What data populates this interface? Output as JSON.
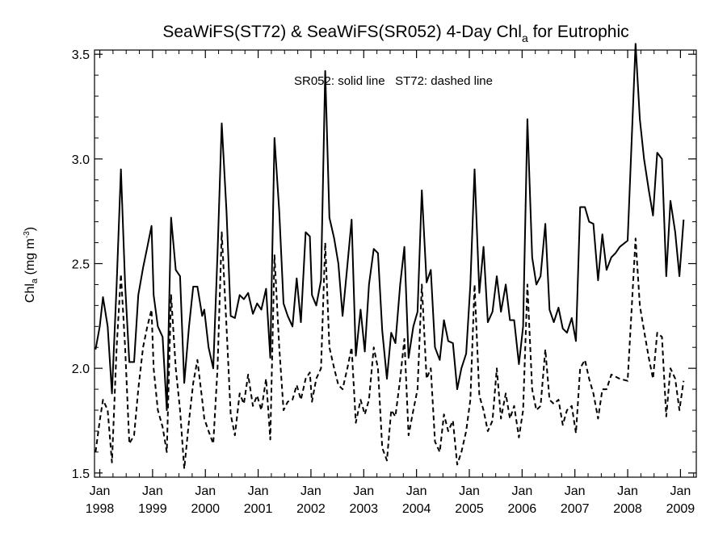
{
  "chart_data": {
    "type": "line",
    "title": {
      "part1": "SeaWiFS(ST72) & SeaWiFS(SR052) 4-Day Chl",
      "sub": "a",
      "part2": " for Eutrophic"
    },
    "ylabel": {
      "main": "Chl",
      "sub": "a",
      "unit_pre": " (mg m",
      "sup": "-3",
      "unit_post": ")"
    },
    "annotation": "SR052: solid line   ST72: dashed line",
    "xlim": [
      1997.9,
      2009.3
    ],
    "ylim": [
      1.48,
      3.52
    ],
    "yticks": [
      1.5,
      2.0,
      2.5,
      3.0,
      3.5
    ],
    "ytick_labels": [
      "1.5",
      "2.0",
      "2.5",
      "3.0",
      "3.5"
    ],
    "xticks": [
      {
        "value": 1998,
        "month": "Jan",
        "year": "1998"
      },
      {
        "value": 1999,
        "month": "Jan",
        "year": "1999"
      },
      {
        "value": 2000,
        "month": "Jan",
        "year": "2000"
      },
      {
        "value": 2001,
        "month": "Jan",
        "year": "2001"
      },
      {
        "value": 2002,
        "month": "Jan",
        "year": "2002"
      },
      {
        "value": 2003,
        "month": "Jan",
        "year": "2003"
      },
      {
        "value": 2004,
        "month": "Jan",
        "year": "2004"
      },
      {
        "value": 2005,
        "month": "Jan",
        "year": "2005"
      },
      {
        "value": 2006,
        "month": "Jan",
        "year": "2006"
      },
      {
        "value": 2007,
        "month": "Jan",
        "year": "2007"
      },
      {
        "value": 2008,
        "month": "Jan",
        "year": "2008"
      },
      {
        "value": 2009,
        "month": "Jan",
        "year": "2009"
      }
    ],
    "series": [
      {
        "name": "SR052",
        "style": "solid",
        "color": "#000000",
        "points": [
          [
            1997.92,
            2.09
          ],
          [
            1998.0,
            2.2
          ],
          [
            1998.06,
            2.34
          ],
          [
            1998.15,
            2.2
          ],
          [
            1998.23,
            1.88
          ],
          [
            1998.32,
            2.4
          ],
          [
            1998.4,
            2.95
          ],
          [
            1998.48,
            2.4
          ],
          [
            1998.56,
            2.03
          ],
          [
            1998.65,
            2.03
          ],
          [
            1998.73,
            2.35
          ],
          [
            1998.82,
            2.48
          ],
          [
            1998.9,
            2.58
          ],
          [
            1998.98,
            2.68
          ],
          [
            1999.02,
            2.35
          ],
          [
            1999.1,
            2.2
          ],
          [
            1999.19,
            2.15
          ],
          [
            1999.27,
            1.8
          ],
          [
            1999.35,
            2.72
          ],
          [
            1999.44,
            2.47
          ],
          [
            1999.52,
            2.44
          ],
          [
            1999.6,
            1.93
          ],
          [
            1999.69,
            2.2
          ],
          [
            1999.77,
            2.39
          ],
          [
            1999.85,
            2.39
          ],
          [
            1999.94,
            2.25
          ],
          [
            1999.98,
            2.28
          ],
          [
            2000.06,
            2.1
          ],
          [
            2000.15,
            2.0
          ],
          [
            2000.23,
            2.55
          ],
          [
            2000.31,
            3.17
          ],
          [
            2000.4,
            2.75
          ],
          [
            2000.48,
            2.25
          ],
          [
            2000.56,
            2.24
          ],
          [
            2000.65,
            2.35
          ],
          [
            2000.73,
            2.33
          ],
          [
            2000.81,
            2.36
          ],
          [
            2000.9,
            2.26
          ],
          [
            2000.98,
            2.31
          ],
          [
            2001.06,
            2.28
          ],
          [
            2001.15,
            2.38
          ],
          [
            2001.23,
            2.05
          ],
          [
            2001.31,
            3.1
          ],
          [
            2001.4,
            2.75
          ],
          [
            2001.48,
            2.31
          ],
          [
            2001.56,
            2.25
          ],
          [
            2001.65,
            2.2
          ],
          [
            2001.73,
            2.43
          ],
          [
            2001.81,
            2.22
          ],
          [
            2001.9,
            2.65
          ],
          [
            2001.98,
            2.63
          ],
          [
            2002.02,
            2.35
          ],
          [
            2002.1,
            2.3
          ],
          [
            2002.19,
            2.42
          ],
          [
            2002.27,
            3.42
          ],
          [
            2002.35,
            2.72
          ],
          [
            2002.44,
            2.62
          ],
          [
            2002.52,
            2.5
          ],
          [
            2002.6,
            2.25
          ],
          [
            2002.69,
            2.49
          ],
          [
            2002.77,
            2.71
          ],
          [
            2002.85,
            2.06
          ],
          [
            2002.94,
            2.28
          ],
          [
            2003.02,
            2.08
          ],
          [
            2003.1,
            2.4
          ],
          [
            2003.19,
            2.57
          ],
          [
            2003.27,
            2.55
          ],
          [
            2003.35,
            2.18
          ],
          [
            2003.44,
            1.95
          ],
          [
            2003.52,
            2.17
          ],
          [
            2003.6,
            2.12
          ],
          [
            2003.69,
            2.4
          ],
          [
            2003.77,
            2.58
          ],
          [
            2003.85,
            2.05
          ],
          [
            2003.94,
            2.2
          ],
          [
            2004.02,
            2.27
          ],
          [
            2004.1,
            2.85
          ],
          [
            2004.19,
            2.41
          ],
          [
            2004.27,
            2.47
          ],
          [
            2004.35,
            2.1
          ],
          [
            2004.44,
            2.04
          ],
          [
            2004.52,
            2.23
          ],
          [
            2004.6,
            2.13
          ],
          [
            2004.69,
            2.12
          ],
          [
            2004.77,
            1.9
          ],
          [
            2004.85,
            2.0
          ],
          [
            2004.94,
            2.07
          ],
          [
            2005.02,
            2.4
          ],
          [
            2005.1,
            2.95
          ],
          [
            2005.19,
            2.36
          ],
          [
            2005.27,
            2.58
          ],
          [
            2005.35,
            2.22
          ],
          [
            2005.44,
            2.27
          ],
          [
            2005.52,
            2.44
          ],
          [
            2005.6,
            2.27
          ],
          [
            2005.69,
            2.4
          ],
          [
            2005.77,
            2.23
          ],
          [
            2005.85,
            2.23
          ],
          [
            2005.94,
            2.02
          ],
          [
            2006.02,
            2.2
          ],
          [
            2006.1,
            3.19
          ],
          [
            2006.19,
            2.53
          ],
          [
            2006.27,
            2.4
          ],
          [
            2006.35,
            2.44
          ],
          [
            2006.44,
            2.69
          ],
          [
            2006.52,
            2.28
          ],
          [
            2006.6,
            2.22
          ],
          [
            2006.69,
            2.29
          ],
          [
            2006.77,
            2.19
          ],
          [
            2006.85,
            2.17
          ],
          [
            2006.94,
            2.24
          ],
          [
            2007.02,
            2.13
          ],
          [
            2007.1,
            2.77
          ],
          [
            2007.19,
            2.77
          ],
          [
            2007.27,
            2.7
          ],
          [
            2007.35,
            2.69
          ],
          [
            2007.44,
            2.42
          ],
          [
            2007.52,
            2.64
          ],
          [
            2007.6,
            2.47
          ],
          [
            2007.69,
            2.53
          ],
          [
            2007.77,
            2.55
          ],
          [
            2007.85,
            2.58
          ],
          [
            2008.0,
            2.61
          ],
          [
            2008.15,
            3.55
          ],
          [
            2008.23,
            3.19
          ],
          [
            2008.31,
            3.0
          ],
          [
            2008.4,
            2.85
          ],
          [
            2008.48,
            2.73
          ],
          [
            2008.56,
            3.03
          ],
          [
            2008.65,
            3.0
          ],
          [
            2008.73,
            2.44
          ],
          [
            2008.81,
            2.8
          ],
          [
            2008.9,
            2.65
          ],
          [
            2008.98,
            2.44
          ],
          [
            2009.06,
            2.71
          ]
        ]
      },
      {
        "name": "ST72",
        "style": "dashed",
        "color": "#000000",
        "points": [
          [
            1997.92,
            1.6
          ],
          [
            1998.0,
            1.75
          ],
          [
            1998.06,
            1.85
          ],
          [
            1998.15,
            1.8
          ],
          [
            1998.23,
            1.55
          ],
          [
            1998.32,
            2.1
          ],
          [
            1998.4,
            2.45
          ],
          [
            1998.48,
            2.1
          ],
          [
            1998.56,
            1.64
          ],
          [
            1998.65,
            1.68
          ],
          [
            1998.73,
            1.9
          ],
          [
            1998.82,
            2.1
          ],
          [
            1998.9,
            2.2
          ],
          [
            1998.98,
            2.28
          ],
          [
            1999.02,
            2.0
          ],
          [
            1999.1,
            1.8
          ],
          [
            1999.19,
            1.72
          ],
          [
            1999.27,
            1.6
          ],
          [
            1999.35,
            2.35
          ],
          [
            1999.44,
            2.0
          ],
          [
            1999.52,
            1.8
          ],
          [
            1999.6,
            1.52
          ],
          [
            1999.69,
            1.75
          ],
          [
            1999.77,
            1.93
          ],
          [
            1999.85,
            2.04
          ],
          [
            1999.94,
            1.85
          ],
          [
            1999.98,
            1.76
          ],
          [
            2000.06,
            1.7
          ],
          [
            2000.15,
            1.64
          ],
          [
            2000.23,
            2.0
          ],
          [
            2000.31,
            2.65
          ],
          [
            2000.4,
            2.2
          ],
          [
            2000.48,
            1.78
          ],
          [
            2000.56,
            1.68
          ],
          [
            2000.65,
            1.88
          ],
          [
            2000.73,
            1.83
          ],
          [
            2000.81,
            1.97
          ],
          [
            2000.9,
            1.82
          ],
          [
            2000.98,
            1.87
          ],
          [
            2001.06,
            1.8
          ],
          [
            2001.15,
            1.95
          ],
          [
            2001.23,
            1.66
          ],
          [
            2001.31,
            2.54
          ],
          [
            2001.4,
            2.1
          ],
          [
            2001.48,
            1.8
          ],
          [
            2001.56,
            1.84
          ],
          [
            2001.65,
            1.85
          ],
          [
            2001.73,
            1.92
          ],
          [
            2001.81,
            1.85
          ],
          [
            2001.9,
            1.95
          ],
          [
            2001.98,
            1.98
          ],
          [
            2002.02,
            1.84
          ],
          [
            2002.1,
            1.95
          ],
          [
            2002.19,
            2.0
          ],
          [
            2002.27,
            2.6
          ],
          [
            2002.35,
            2.1
          ],
          [
            2002.44,
            2.0
          ],
          [
            2002.52,
            1.92
          ],
          [
            2002.6,
            1.9
          ],
          [
            2002.69,
            2.0
          ],
          [
            2002.77,
            2.1
          ],
          [
            2002.85,
            1.74
          ],
          [
            2002.94,
            1.85
          ],
          [
            2003.02,
            1.78
          ],
          [
            2003.1,
            1.85
          ],
          [
            2003.19,
            2.1
          ],
          [
            2003.27,
            2.0
          ],
          [
            2003.35,
            1.62
          ],
          [
            2003.44,
            1.56
          ],
          [
            2003.52,
            1.8
          ],
          [
            2003.6,
            1.77
          ],
          [
            2003.69,
            1.95
          ],
          [
            2003.77,
            2.14
          ],
          [
            2003.85,
            1.68
          ],
          [
            2003.94,
            1.8
          ],
          [
            2004.02,
            1.9
          ],
          [
            2004.1,
            2.4
          ],
          [
            2004.19,
            1.95
          ],
          [
            2004.27,
            2.0
          ],
          [
            2004.35,
            1.65
          ],
          [
            2004.44,
            1.6
          ],
          [
            2004.52,
            1.78
          ],
          [
            2004.6,
            1.7
          ],
          [
            2004.69,
            1.75
          ],
          [
            2004.77,
            1.54
          ],
          [
            2004.85,
            1.6
          ],
          [
            2004.94,
            1.7
          ],
          [
            2005.02,
            1.85
          ],
          [
            2005.1,
            2.4
          ],
          [
            2005.19,
            1.87
          ],
          [
            2005.27,
            1.8
          ],
          [
            2005.35,
            1.7
          ],
          [
            2005.44,
            1.75
          ],
          [
            2005.52,
            2.0
          ],
          [
            2005.6,
            1.76
          ],
          [
            2005.69,
            1.88
          ],
          [
            2005.77,
            1.76
          ],
          [
            2005.85,
            1.82
          ],
          [
            2005.94,
            1.67
          ],
          [
            2006.02,
            1.8
          ],
          [
            2006.1,
            2.4
          ],
          [
            2006.19,
            1.9
          ],
          [
            2006.27,
            1.8
          ],
          [
            2006.35,
            1.82
          ],
          [
            2006.44,
            2.09
          ],
          [
            2006.52,
            1.85
          ],
          [
            2006.6,
            1.83
          ],
          [
            2006.69,
            1.85
          ],
          [
            2006.77,
            1.73
          ],
          [
            2006.85,
            1.8
          ],
          [
            2006.94,
            1.82
          ],
          [
            2007.02,
            1.69
          ],
          [
            2007.1,
            2.0
          ],
          [
            2007.19,
            2.04
          ],
          [
            2007.27,
            1.95
          ],
          [
            2007.35,
            1.88
          ],
          [
            2007.44,
            1.76
          ],
          [
            2007.52,
            1.9
          ],
          [
            2007.6,
            1.9
          ],
          [
            2007.69,
            1.97
          ],
          [
            2007.77,
            1.96
          ],
          [
            2007.85,
            1.95
          ],
          [
            2008.0,
            1.94
          ],
          [
            2008.15,
            2.62
          ],
          [
            2008.23,
            2.3
          ],
          [
            2008.31,
            2.18
          ],
          [
            2008.4,
            2.05
          ],
          [
            2008.48,
            1.95
          ],
          [
            2008.56,
            2.17
          ],
          [
            2008.65,
            2.15
          ],
          [
            2008.73,
            1.77
          ],
          [
            2008.81,
            2.0
          ],
          [
            2008.9,
            1.95
          ],
          [
            2008.98,
            1.8
          ],
          [
            2009.06,
            1.94
          ]
        ]
      }
    ]
  }
}
